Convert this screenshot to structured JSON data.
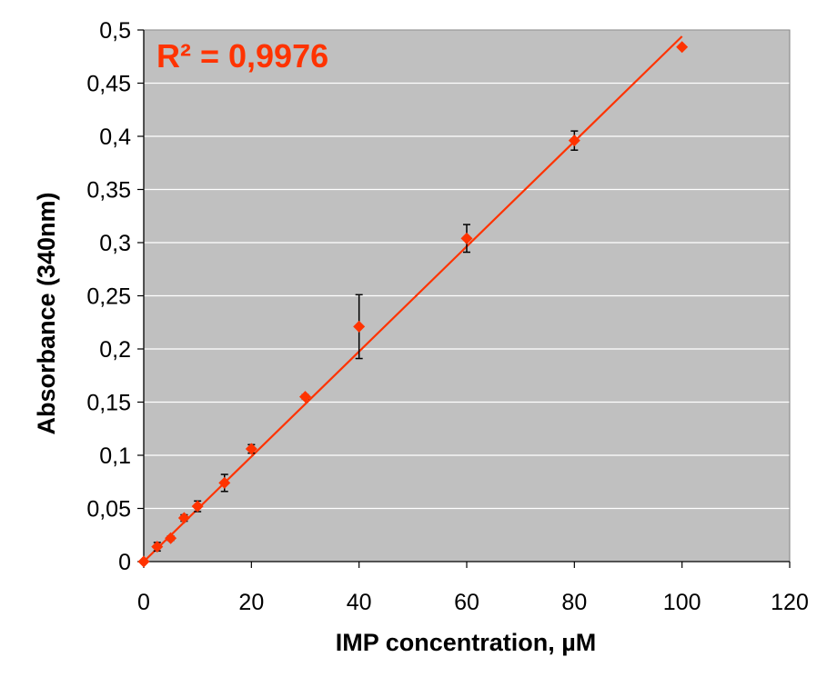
{
  "chart_data": {
    "type": "scatter",
    "title": "",
    "xlabel": "IMP concentration, µM",
    "ylabel": "Absorbance (340nm)",
    "xlim": [
      0,
      120
    ],
    "ylim": [
      0,
      0.5
    ],
    "x_ticks": [
      "0",
      "20",
      "40",
      "60",
      "80",
      "100",
      "120"
    ],
    "y_ticks": [
      "0",
      "0,05",
      "0,1",
      "0,15",
      "0,2",
      "0,25",
      "0,3",
      "0,35",
      "0,4",
      "0,45",
      "0,5"
    ],
    "grid": "horizontal",
    "plot_background": "#c0c0c0",
    "series": [
      {
        "marker": "diamond",
        "color": "#ff3300",
        "x": [
          0,
          2.5,
          5,
          7.5,
          10,
          15,
          20,
          30,
          40,
          60,
          80,
          100
        ],
        "y": [
          0,
          0.014,
          0.022,
          0.041,
          0.052,
          0.074,
          0.106,
          0.155,
          0.221,
          0.304,
          0.396,
          0.484
        ],
        "error": [
          0,
          0.004,
          0.002,
          0.003,
          0.005,
          0.008,
          0.004,
          0.002,
          0.03,
          0.013,
          0.009,
          0
        ]
      }
    ],
    "trendline": {
      "type": "linear",
      "color": "#ff3300",
      "x_start": 0,
      "y_start": 0,
      "x_end": 100,
      "y_end": 0.494
    },
    "annotation": {
      "text": "R² = 0,9976",
      "color": "#ff3300"
    }
  }
}
